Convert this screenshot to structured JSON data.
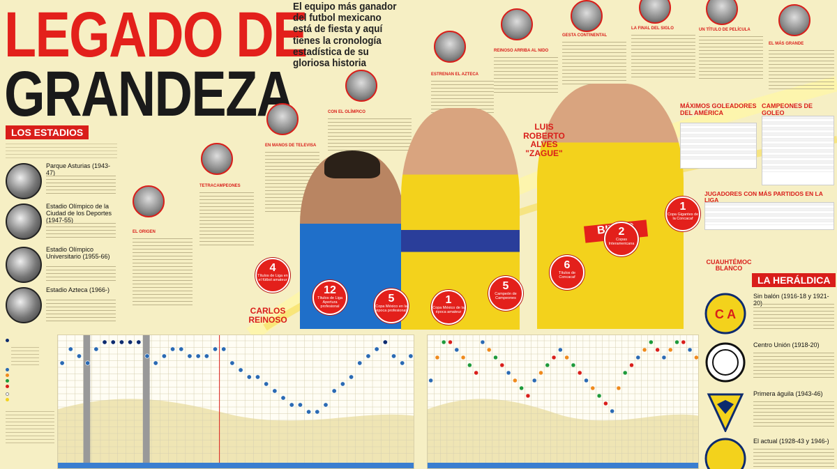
{
  "title": {
    "line1": "LEGADO DE",
    "line2": "GRANDEZA"
  },
  "intro": "El equipo más ganador del futbol mexicano está de fiesta y aquí tienes la cronología estadística de su gloriosa historia",
  "estadios": {
    "heading": "LOS ESTADIOS",
    "items": [
      {
        "name": "Parque Asturias (1943-47)"
      },
      {
        "name": "Estadio Olímpico de la Ciudad de los Deportes (1947-55)"
      },
      {
        "name": "Estadio Olímpico Universitario (1955-66)"
      },
      {
        "name": "Estadio Azteca (1966-)"
      }
    ]
  },
  "timeline": [
    {
      "title": "EL ORIGEN"
    },
    {
      "title": "TETRACAMPEONES"
    },
    {
      "title": "EN MANOS DE TELEVISA"
    },
    {
      "title": "CON EL OLÍMPICO"
    },
    {
      "title": "ESTRENAN EL AZTECA"
    },
    {
      "title": "REINOSO ARRIBA AL NIDO"
    },
    {
      "title": "GESTA CONTINENTAL"
    },
    {
      "title": "LA FINAL DEL SIGLO"
    },
    {
      "title": "UN TÍTULO DE PELÍCULA"
    },
    {
      "title": "EL MÁS GRANDE"
    }
  ],
  "players": {
    "reinoso": {
      "name": "CARLOS REINOSO"
    },
    "zague": {
      "name": "LUIS ROBERTO ALVES \"ZAGUE\""
    },
    "blanco": {
      "name": "CUAUHTÉMOC BLANCO"
    }
  },
  "badges": [
    {
      "n": "4",
      "label": "Títulos de Liga en el fútbol amateur"
    },
    {
      "n": "12",
      "label": "Títulos de Liga Apertura profesional"
    },
    {
      "n": "5",
      "label": "Copa México en la época profesional"
    },
    {
      "n": "1",
      "label": "Copa México de la época amateur"
    },
    {
      "n": "5",
      "label": "Campeón de Campeones"
    },
    {
      "n": "6",
      "label": "Títulos de Concacaf"
    },
    {
      "n": "2",
      "label": "Copas Interamericana"
    },
    {
      "n": "1",
      "label": "Copa Gigantes de la Concacaf"
    }
  ],
  "tables": {
    "goleadores": "MÁXIMOS GOLEADORES DEL AMÉRICA",
    "campeones": "CAMPEONES DE GOLEO",
    "partidos": "JUGADORES CON MÁS PARTIDOS EN LA LIGA"
  },
  "heraldica": {
    "heading": "LA HERÁLDICA",
    "items": [
      {
        "name": "Sin balón (1916-18 y 1921-20)"
      },
      {
        "name": "Centro Unión (1918-20)"
      },
      {
        "name": "Primera águila (1943-46)"
      },
      {
        "name": "El actual (1928-43 y 1946-)"
      }
    ]
  },
  "colors": {
    "red": "#d91e1a",
    "blue": "#2a6ab3",
    "navy": "#0d2b6e",
    "yellow": "#f3d21c",
    "green": "#1e9a3a",
    "orange": "#ef8a1c"
  }
}
